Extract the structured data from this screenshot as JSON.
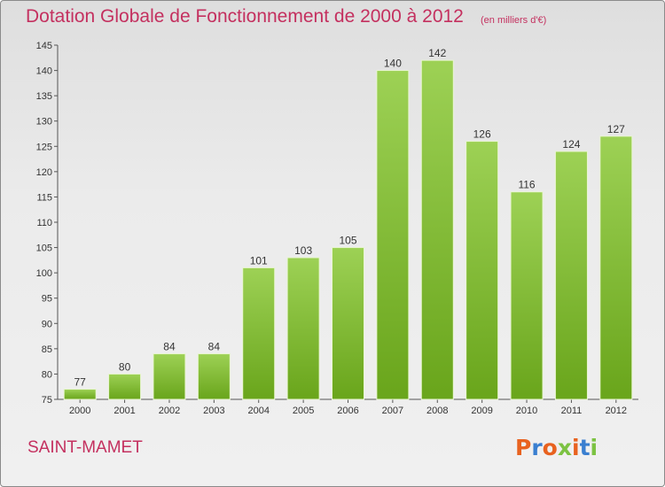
{
  "header": {
    "title": "Dotation Globale de Fonctionnement de 2000 à 2012",
    "subtitle": "(en milliers d'€)"
  },
  "footer": {
    "commune": "SAINT-MAMET",
    "logo_text": "Proxiti"
  },
  "colors": {
    "title": "#c4305f",
    "bar_light": "#9dd155",
    "bar_dark": "#69a51b",
    "logo_letters": [
      "#e8621f",
      "#3a7fd0",
      "#e8621f",
      "#7cc242",
      "#e8621f",
      "#3a7fd0",
      "#7cc242"
    ]
  },
  "chart_data": {
    "type": "bar",
    "title": "Dotation Globale de Fonctionnement de 2000 à 2012",
    "subtitle": "(en milliers d'€)",
    "categories": [
      "2000",
      "2001",
      "2002",
      "2003",
      "2004",
      "2005",
      "2006",
      "2007",
      "2008",
      "2009",
      "2010",
      "2011",
      "2012"
    ],
    "values": [
      77,
      80,
      84,
      84,
      101,
      103,
      105,
      140,
      142,
      126,
      116,
      124,
      127
    ],
    "ylim": [
      75,
      145
    ],
    "yticks": [
      75,
      80,
      85,
      90,
      95,
      100,
      105,
      110,
      115,
      120,
      125,
      130,
      135,
      140,
      145
    ],
    "grid": false,
    "legend": "none"
  }
}
